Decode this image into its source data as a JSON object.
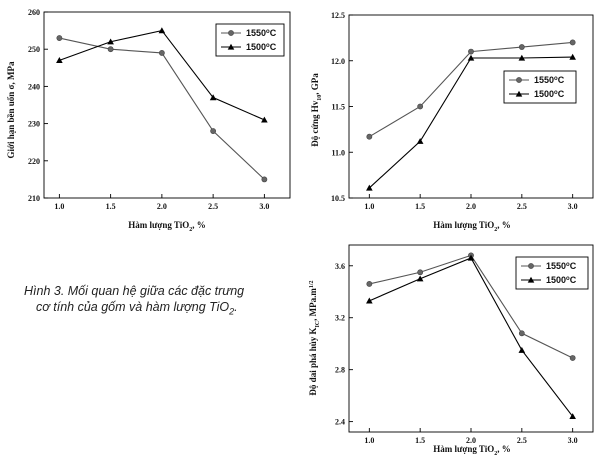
{
  "caption": {
    "line1": "Hình 3. Mối quan hệ giữa các đặc trưng",
    "line2_a": "cơ tính của gốm và hàm lượng TiO",
    "line2_sub": "2",
    "line2_b": "."
  },
  "chart_data": [
    {
      "type": "line",
      "xlabel_main": "Hàm lượng TiO",
      "xlabel_sub": "2",
      "xlabel_tail": ", %",
      "ylabel_main": "Giới hạn bền uốn σ",
      "ylabel_tail": ", MPa",
      "x": [
        1.0,
        1.5,
        2.0,
        2.5,
        3.0
      ],
      "xticks": [
        "1.0",
        "1.5",
        "2.0",
        "2.5",
        "3.0"
      ],
      "yticks": [
        "210",
        "220",
        "230",
        "240",
        "250",
        "260"
      ],
      "xlim": [
        0.85,
        3.25
      ],
      "ylim": [
        210,
        260
      ],
      "legend": "top-right",
      "grid": false,
      "series": [
        {
          "name_main": "1550",
          "name_sup": "o",
          "name_tail": "C",
          "marker": "circle",
          "values": [
            253,
            250,
            249,
            228,
            215
          ]
        },
        {
          "name_main": "1500",
          "name_sup": "o",
          "name_tail": "C",
          "marker": "triangle",
          "values": [
            247,
            252,
            255,
            237,
            231
          ]
        }
      ]
    },
    {
      "type": "line",
      "xlabel_main": "Hàm lượng TiO",
      "xlabel_sub": "2",
      "xlabel_tail": ", %",
      "ylabel_main": "Độ cứng Hv",
      "ylabel_sub": "10",
      "ylabel_tail": ", GPa",
      "x": [
        1.0,
        1.5,
        2.0,
        2.5,
        3.0
      ],
      "xticks": [
        "1.0",
        "1.5",
        "2.0",
        "2.5",
        "3.0"
      ],
      "yticks": [
        "10.5",
        "11.0",
        "11.5",
        "12.0",
        "12.5"
      ],
      "xlim": [
        0.8,
        3.2
      ],
      "ylim": [
        10.5,
        12.5
      ],
      "legend": "right",
      "grid": false,
      "series": [
        {
          "name_main": "1550",
          "name_sup": "o",
          "name_tail": "C",
          "marker": "circle",
          "values": [
            11.17,
            11.5,
            12.1,
            12.15,
            12.2
          ]
        },
        {
          "name_main": "1500",
          "name_sup": "o",
          "name_tail": "C",
          "marker": "triangle",
          "values": [
            10.61,
            11.12,
            12.03,
            12.03,
            12.04
          ]
        }
      ]
    },
    {
      "type": "line",
      "xlabel_main": "Hàm lượng TiO",
      "xlabel_sub": "2",
      "xlabel_tail": ", %",
      "ylabel_main": "Độ dai phá hủy K",
      "ylabel_sub": "IC",
      "ylabel_tail": ", MPa.m",
      "ylabel_sup": "1/2",
      "x": [
        1.0,
        1.5,
        2.0,
        2.5,
        3.0
      ],
      "xticks": [
        "1.0",
        "1.5",
        "2.0",
        "2.5",
        "3.0"
      ],
      "yticks": [
        "2.4",
        "2.8",
        "3.2",
        "3.6"
      ],
      "xlim": [
        0.8,
        3.2
      ],
      "ylim": [
        2.32,
        3.76
      ],
      "legend": "top-right",
      "grid": false,
      "series": [
        {
          "name_main": "1550",
          "name_sup": "o",
          "name_tail": "C",
          "marker": "circle",
          "values": [
            3.46,
            3.55,
            3.68,
            3.08,
            2.89
          ]
        },
        {
          "name_main": "1500",
          "name_sup": "o",
          "name_tail": "C",
          "marker": "triangle",
          "values": [
            3.33,
            3.5,
            3.66,
            2.95,
            2.44
          ]
        }
      ]
    }
  ]
}
